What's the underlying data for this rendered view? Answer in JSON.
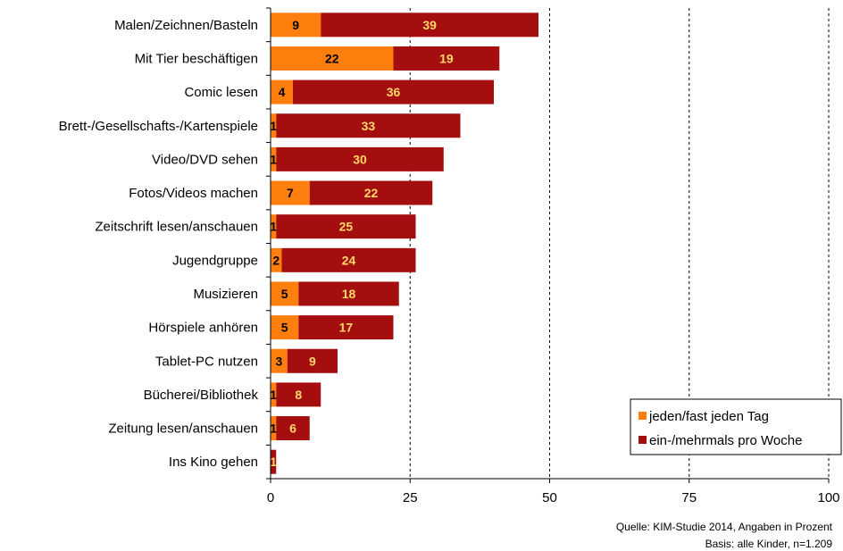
{
  "chart_data": {
    "type": "bar",
    "orientation": "horizontal",
    "stacked": true,
    "categories": [
      "Malen/Zeichnen/Basteln",
      "Mit Tier beschäftigen",
      "Comic lesen",
      "Brett-/Gesellschafts-/Kartenspiele",
      "Video/DVD sehen",
      "Fotos/Videos machen",
      "Zeitschrift lesen/anschauen",
      "Jugendgruppe",
      "Musizieren",
      "Hörspiele anhören",
      "Tablet-PC nutzen",
      "Bücherei/Bibliothek",
      "Zeitung lesen/anschauen",
      "Ins Kino gehen"
    ],
    "series": [
      {
        "name": "jeden/fast jeden Tag",
        "color": "#ff7f0e",
        "label_color": "#000000",
        "values": [
          9,
          22,
          4,
          1,
          1,
          7,
          1,
          2,
          5,
          5,
          3,
          1,
          1,
          0
        ]
      },
      {
        "name": "ein-/mehrmals pro Woche",
        "color": "#a50e0e",
        "label_color": "#ffd966",
        "values": [
          39,
          19,
          36,
          33,
          30,
          22,
          25,
          24,
          18,
          17,
          9,
          8,
          6,
          1
        ]
      }
    ],
    "xlim": [
      0,
      100
    ],
    "xticks": [
      "0",
      "25",
      "50",
      "75",
      "100"
    ],
    "grid": "vertical dashed at 50, 75, 100",
    "legend_position": "bottom-right",
    "xlabel": "",
    "ylabel": ""
  },
  "source": {
    "line1": "Quelle: KIM-Studie 2014, Angaben in Prozent",
    "line2": "Basis: alle Kinder, n=1.209"
  }
}
